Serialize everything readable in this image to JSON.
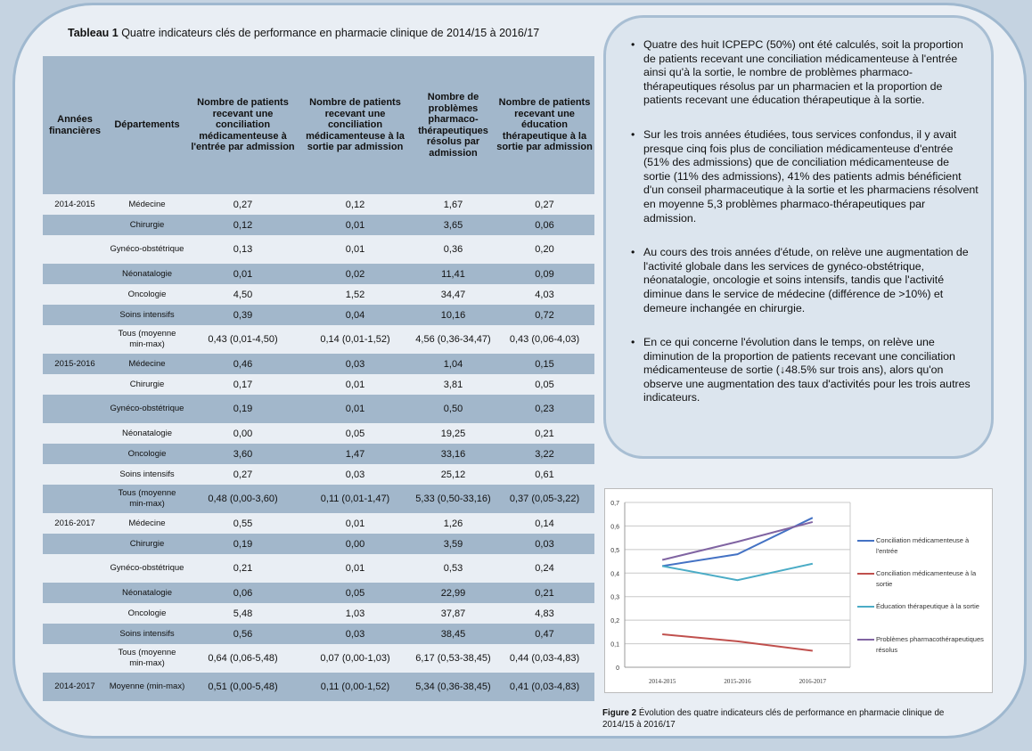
{
  "table": {
    "title_bold": "Tableau 1",
    "title_rest": " Quatre indicateurs clés de performance en pharmacie clinique de 2014/15 à 2016/17",
    "headers": [
      "Années financières",
      "Départements",
      "Nombre de patients recevant une conciliation médicamenteuse à l'entrée par admission",
      "Nombre de patients recevant une conciliation médicamenteuse à la sortie par admission",
      "Nombre de problèmes pharmaco-thérapeutiques résolus par admission",
      "Nombre de patients recevant une éducation thérapeutique à la sortie par admission"
    ],
    "rows": [
      [
        "2014-2015",
        "Médecine",
        "0,27",
        "0,12",
        "1,67",
        "0,27"
      ],
      [
        "",
        "Chirurgie",
        "0,12",
        "0,01",
        "3,65",
        "0,06"
      ],
      [
        "",
        "Gynéco-obstétrique",
        "0,13",
        "0,01",
        "0,36",
        "0,20"
      ],
      [
        "",
        "Néonatalogie",
        "0,01",
        "0,02",
        "11,41",
        "0,09"
      ],
      [
        "",
        "Oncologie",
        "4,50",
        "1,52",
        "34,47",
        "4,03"
      ],
      [
        "",
        "Soins intensifs",
        "0,39",
        "0,04",
        "10,16",
        "0,72"
      ],
      [
        "",
        "Tous (moyenne min-max)",
        "0,43 (0,01-4,50)",
        "0,14 (0,01-1,52)",
        "4,56 (0,36-34,47)",
        "0,43 (0,06-4,03)"
      ],
      [
        "2015-2016",
        "Médecine",
        "0,46",
        "0,03",
        "1,04",
        "0,15"
      ],
      [
        "",
        "Chirurgie",
        "0,17",
        "0,01",
        "3,81",
        "0,05"
      ],
      [
        "",
        "Gynéco-obstétrique",
        "0,19",
        "0,01",
        "0,50",
        "0,23"
      ],
      [
        "",
        "Néonatalogie",
        "0,00",
        "0,05",
        "19,25",
        "0,21"
      ],
      [
        "",
        "Oncologie",
        "3,60",
        "1,47",
        "33,16",
        "3,22"
      ],
      [
        "",
        "Soins intensifs",
        "0,27",
        "0,03",
        "25,12",
        "0,61"
      ],
      [
        "",
        "Tous (moyenne min-max)",
        "0,48 (0,00-3,60)",
        "0,11 (0,01-1,47)",
        "5,33 (0,50-33,16)",
        "0,37 (0,05-3,22)"
      ],
      [
        "2016-2017",
        "Médecine",
        "0,55",
        "0,01",
        "1,26",
        "0,14"
      ],
      [
        "",
        "Chirurgie",
        "0,19",
        "0,00",
        "3,59",
        "0,03"
      ],
      [
        "",
        "Gynéco-obstétrique",
        "0,21",
        "0,01",
        "0,53",
        "0,24"
      ],
      [
        "",
        "Néonatalogie",
        "0,06",
        "0,05",
        "22,99",
        "0,21"
      ],
      [
        "",
        "Oncologie",
        "5,48",
        "1,03",
        "37,87",
        "4,83"
      ],
      [
        "",
        "Soins intensifs",
        "0,56",
        "0,03",
        "38,45",
        "0,47"
      ],
      [
        "",
        "Tous (moyenne min-max)",
        "0,64 (0,06-5,48)",
        "0,07 (0,00-1,03)",
        "6,17 (0,53-38,45)",
        "0,44 (0,03-4,83)"
      ],
      [
        "2014-2017",
        "Moyenne (min-max)",
        "0,51 (0,00-5,48)",
        "0,11 (0,00-1,52)",
        "5,34 (0,36-38,45)",
        "0,41 (0,03-4,83)"
      ]
    ]
  },
  "notes": [
    "Quatre des huit ICPEPC (50%) ont été calculés, soit la proportion de patients recevant une conciliation médicamenteuse à l'entrée ainsi qu'à la sortie, le nombre de problèmes pharmaco-thérapeutiques résolus par un pharmacien et la proportion de patients recevant une éducation thérapeutique à la sortie.",
    "Sur les trois années étudiées, tous services confondus, il y avait presque cinq fois plus de conciliation médicamenteuse d'entrée (51% des admissions) que de conciliation médicamenteuse de sortie (11% des admissions), 41% des patients admis bénéficient d'un conseil pharmaceutique à la sortie et les pharmaciens résolvent en moyenne 5,3 problèmes pharmaco-thérapeutiques par admission.",
    "Au cours des trois années d'étude, on relève une augmentation de l'activité globale dans les services de gynéco-obstétrique, néonatalogie, oncologie et soins intensifs, tandis que l'activité diminue dans le service de médecine (différence de >10%) et demeure inchangée en chirurgie.",
    "En ce qui concerne l'évolution dans le temps, on relève une diminution de la proportion de patients recevant une conciliation médicamenteuse de sortie (↓48.5% sur trois ans), alors qu'on observe une augmentation des taux d'activités pour les trois autres indicateurs."
  ],
  "chart_data": {
    "type": "line",
    "categories": [
      "2014-2015",
      "2015-2016",
      "2016-2017"
    ],
    "ylim": [
      0,
      0.7
    ],
    "yticks": [
      "0",
      "0,1",
      "0,2",
      "0,3",
      "0,4",
      "0,5",
      "0,6",
      "0,7"
    ],
    "grid": true,
    "legend": "right",
    "series": [
      {
        "name": "Conciliation médicamenteuse à l'entrée",
        "values": [
          0.43,
          0.48,
          0.635
        ],
        "color": "#4472c4"
      },
      {
        "name": "Conciliation médicamenteuse à la sortie",
        "values": [
          0.14,
          0.11,
          0.07
        ],
        "color": "#c0504d"
      },
      {
        "name": "Éducation thérapeutique à la sortie",
        "values": [
          0.43,
          0.37,
          0.44
        ],
        "color": "#4bacc6"
      },
      {
        "name": "Problèmes pharmacothérapeutiques résolus",
        "values": [
          0.456,
          0.533,
          0.617
        ],
        "color": "#8064a2"
      }
    ]
  },
  "figure": {
    "caption_bold": "Figure 2",
    "caption_rest": " Évolution des quatre indicateurs clés de performance en pharmacie clinique de 2014/15 à 2016/17"
  }
}
